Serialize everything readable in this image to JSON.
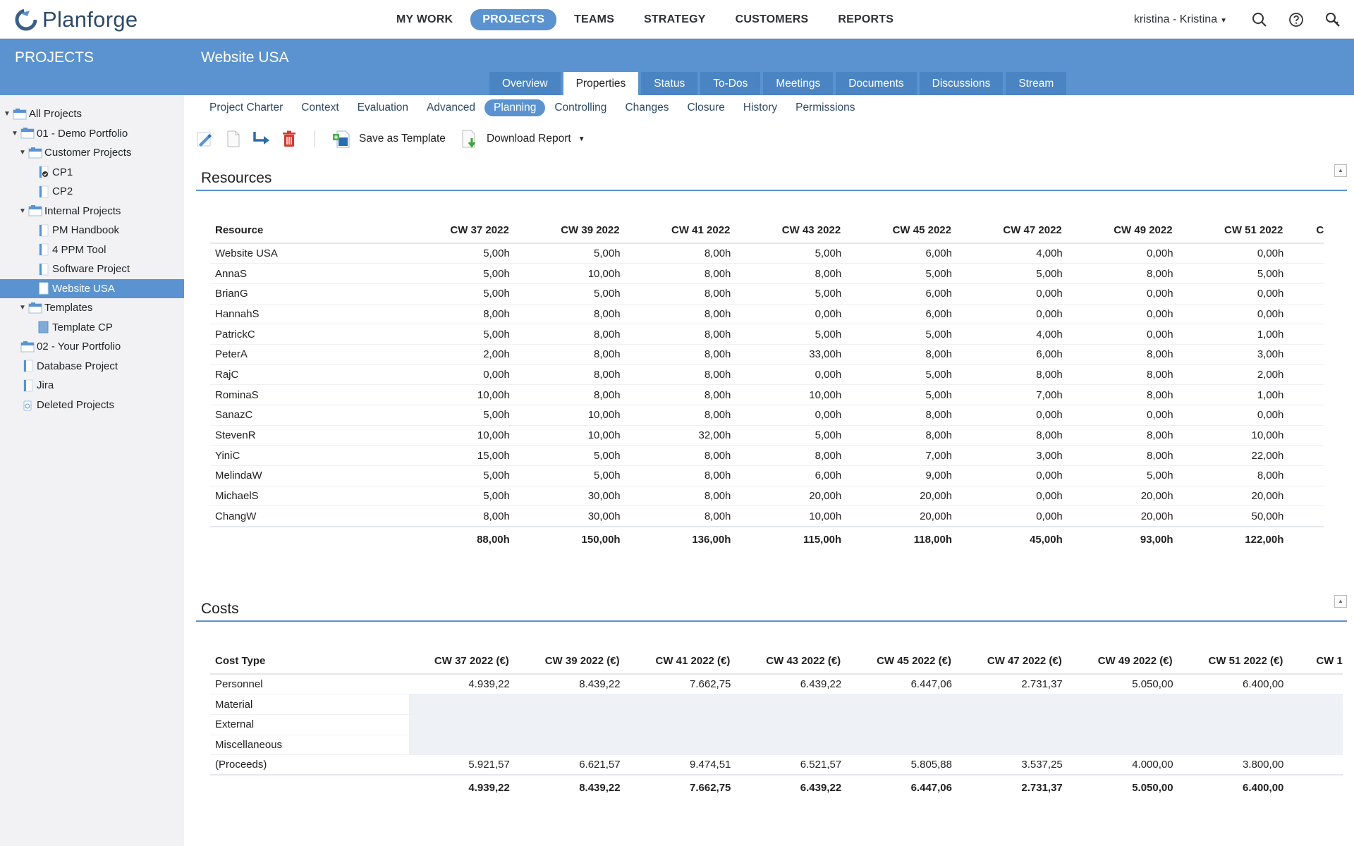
{
  "app": {
    "name": "Planforge",
    "nav": [
      "MY WORK",
      "PROJECTS",
      "TEAMS",
      "STRATEGY",
      "CUSTOMERS",
      "REPORTS"
    ],
    "active_nav": "PROJECTS",
    "user": "kristina - Kristina"
  },
  "sidebar": {
    "title": "PROJECTS",
    "tree": [
      {
        "label": "All Projects",
        "level": 0,
        "toggle": "▼",
        "icon": "portfolio-icon"
      },
      {
        "label": "01 - Demo Portfolio",
        "level": 1,
        "toggle": "▼",
        "icon": "portfolio-icon"
      },
      {
        "label": "Customer Projects",
        "level": 2,
        "toggle": "▼",
        "icon": "portfolio-icon"
      },
      {
        "label": "CP1",
        "level": 3,
        "toggle": "",
        "icon": "project-done-icon"
      },
      {
        "label": "CP2",
        "level": 3,
        "toggle": "",
        "icon": "project-icon"
      },
      {
        "label": "Internal Projects",
        "level": 2,
        "toggle": "▼",
        "icon": "portfolio-icon"
      },
      {
        "label": "PM Handbook",
        "level": 3,
        "toggle": "",
        "icon": "project-icon"
      },
      {
        "label": "4 PPM Tool",
        "level": 3,
        "toggle": "",
        "icon": "project-icon"
      },
      {
        "label": "Software Project",
        "level": 3,
        "toggle": "",
        "icon": "project-icon"
      },
      {
        "label": "Website USA",
        "level": 3,
        "toggle": "",
        "icon": "project-icon",
        "selected": true
      },
      {
        "label": "Templates",
        "level": 2,
        "toggle": "▼",
        "icon": "portfolio-icon"
      },
      {
        "label": "Template CP",
        "level": 3,
        "toggle": "",
        "icon": "template-icon"
      },
      {
        "label": "02 - Your Portfolio",
        "level": 1,
        "toggle": "",
        "icon": "portfolio-icon"
      },
      {
        "label": "Database Project",
        "level": 1,
        "toggle": "",
        "icon": "project-icon"
      },
      {
        "label": "Jira",
        "level": 1,
        "toggle": "",
        "icon": "project-icon"
      },
      {
        "label": "Deleted Projects",
        "level": 1,
        "toggle": "",
        "icon": "trash-icon"
      }
    ]
  },
  "project": {
    "title": "Website USA",
    "tabs": [
      "Overview",
      "Properties",
      "Status",
      "To-Dos",
      "Meetings",
      "Documents",
      "Discussions",
      "Stream"
    ],
    "active_tab": "Properties",
    "subtabs": [
      "Project Charter",
      "Context",
      "Evaluation",
      "Advanced",
      "Planning",
      "Controlling",
      "Changes",
      "Closure",
      "History",
      "Permissions"
    ],
    "active_subtab": "Planning"
  },
  "toolbar": {
    "save_template": "Save as Template",
    "download_report": "Download Report"
  },
  "resources": {
    "title": "Resources",
    "header_first": "Resource",
    "columns": [
      "CW 37 2022",
      "CW 39 2022",
      "CW 41 2022",
      "CW 43 2022",
      "CW 45 2022",
      "CW 47 2022",
      "CW 49 2022",
      "CW 51 2022",
      "C"
    ],
    "rows": [
      {
        "name": "Website USA",
        "values": [
          "5,00h",
          "5,00h",
          "8,00h",
          "5,00h",
          "6,00h",
          "4,00h",
          "0,00h",
          "0,00h"
        ]
      },
      {
        "name": "AnnaS",
        "values": [
          "5,00h",
          "10,00h",
          "8,00h",
          "8,00h",
          "5,00h",
          "5,00h",
          "8,00h",
          "5,00h"
        ]
      },
      {
        "name": "BrianG",
        "values": [
          "5,00h",
          "5,00h",
          "8,00h",
          "5,00h",
          "6,00h",
          "0,00h",
          "0,00h",
          "0,00h"
        ]
      },
      {
        "name": "HannahS",
        "values": [
          "8,00h",
          "8,00h",
          "8,00h",
          "0,00h",
          "6,00h",
          "0,00h",
          "0,00h",
          "0,00h"
        ]
      },
      {
        "name": "PatrickC",
        "values": [
          "5,00h",
          "8,00h",
          "8,00h",
          "5,00h",
          "5,00h",
          "4,00h",
          "0,00h",
          "1,00h"
        ]
      },
      {
        "name": "PeterA",
        "values": [
          "2,00h",
          "8,00h",
          "8,00h",
          "33,00h",
          "8,00h",
          "6,00h",
          "8,00h",
          "3,00h"
        ]
      },
      {
        "name": "RajC",
        "values": [
          "0,00h",
          "8,00h",
          "8,00h",
          "0,00h",
          "5,00h",
          "8,00h",
          "8,00h",
          "2,00h"
        ]
      },
      {
        "name": "RominaS",
        "values": [
          "10,00h",
          "8,00h",
          "8,00h",
          "10,00h",
          "5,00h",
          "7,00h",
          "8,00h",
          "1,00h"
        ]
      },
      {
        "name": "SanazC",
        "values": [
          "5,00h",
          "10,00h",
          "8,00h",
          "0,00h",
          "8,00h",
          "0,00h",
          "0,00h",
          "0,00h"
        ]
      },
      {
        "name": "StevenR",
        "values": [
          "10,00h",
          "10,00h",
          "32,00h",
          "5,00h",
          "8,00h",
          "8,00h",
          "8,00h",
          "10,00h"
        ]
      },
      {
        "name": "YiniC",
        "values": [
          "15,00h",
          "5,00h",
          "8,00h",
          "8,00h",
          "7,00h",
          "3,00h",
          "8,00h",
          "22,00h"
        ]
      },
      {
        "name": "MelindaW",
        "values": [
          "5,00h",
          "5,00h",
          "8,00h",
          "6,00h",
          "9,00h",
          "0,00h",
          "5,00h",
          "8,00h"
        ]
      },
      {
        "name": "MichaelS",
        "values": [
          "5,00h",
          "30,00h",
          "8,00h",
          "20,00h",
          "20,00h",
          "0,00h",
          "20,00h",
          "20,00h"
        ]
      },
      {
        "name": "ChangW",
        "values": [
          "8,00h",
          "30,00h",
          "8,00h",
          "10,00h",
          "20,00h",
          "0,00h",
          "20,00h",
          "50,00h"
        ]
      }
    ],
    "totals": [
      "88,00h",
      "150,00h",
      "136,00h",
      "115,00h",
      "118,00h",
      "45,00h",
      "93,00h",
      "122,00h"
    ]
  },
  "costs": {
    "title": "Costs",
    "header_first": "Cost Type",
    "columns": [
      "CW 37 2022 (€)",
      "CW 39 2022 (€)",
      "CW 41 2022 (€)",
      "CW 43 2022 (€)",
      "CW 45 2022 (€)",
      "CW 47 2022 (€)",
      "CW 49 2022 (€)",
      "CW 51 2022 (€)",
      "CW 1"
    ],
    "rows": [
      {
        "name": "Personnel",
        "values": [
          "4.939,22",
          "8.439,22",
          "7.662,75",
          "6.439,22",
          "6.447,06",
          "2.731,37",
          "5.050,00",
          "6.400,00"
        ]
      },
      {
        "name": "Material",
        "values": []
      },
      {
        "name": "External",
        "values": []
      },
      {
        "name": "Miscellaneous",
        "values": []
      },
      {
        "name": "(Proceeds)",
        "values": [
          "5.921,57",
          "6.621,57",
          "9.474,51",
          "6.521,57",
          "5.805,88",
          "3.537,25",
          "4.000,00",
          "3.800,00"
        ]
      }
    ],
    "totals": [
      "4.939,22",
      "8.439,22",
      "7.662,75",
      "6.439,22",
      "6.447,06",
      "2.731,37",
      "5.050,00",
      "6.400,00"
    ]
  }
}
